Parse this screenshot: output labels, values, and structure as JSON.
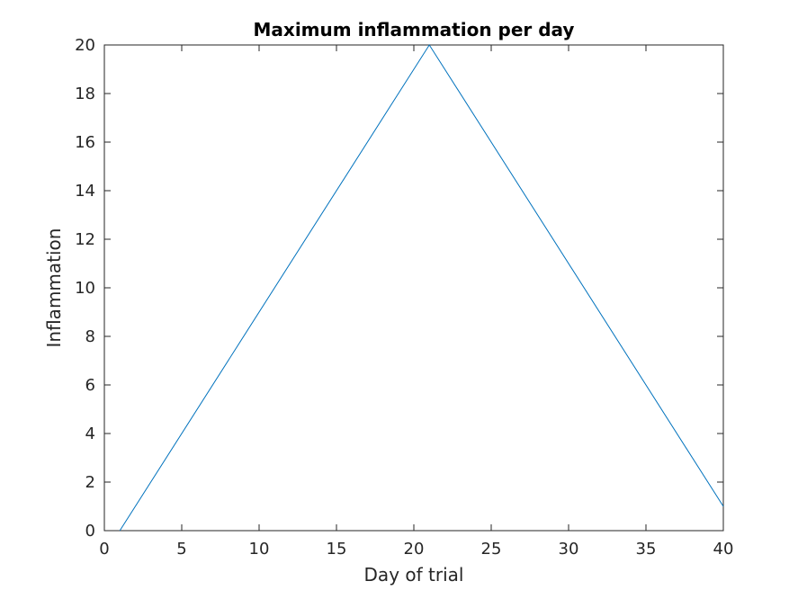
{
  "chart_data": {
    "type": "line",
    "title": "Maximum inflammation per day",
    "xlabel": "Day of trial",
    "ylabel": "Inflammation",
    "xlim": [
      0,
      40
    ],
    "ylim": [
      0,
      20
    ],
    "xticks": [
      0,
      5,
      10,
      15,
      20,
      25,
      30,
      35,
      40
    ],
    "yticks": [
      0,
      2,
      4,
      6,
      8,
      10,
      12,
      14,
      16,
      18,
      20
    ],
    "grid": false,
    "series": [
      {
        "color": "#0072BD",
        "x": [
          1,
          21,
          40
        ],
        "y": [
          0,
          20,
          1
        ]
      }
    ]
  }
}
